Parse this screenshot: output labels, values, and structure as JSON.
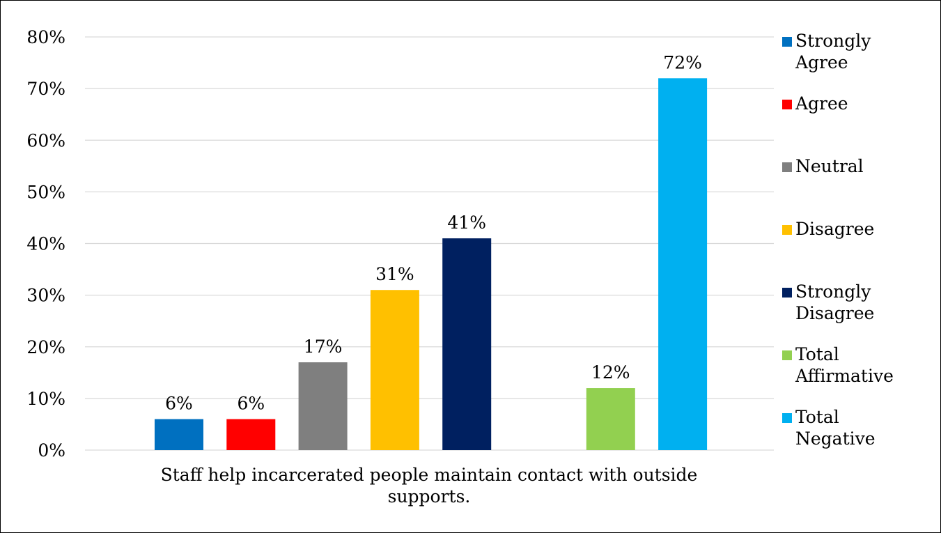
{
  "chart_data": {
    "type": "bar",
    "title": "",
    "xlabel": "",
    "ylabel": "",
    "categories": [
      "Staff help incarcerated people maintain contact with outside supports."
    ],
    "ylim": [
      0,
      80
    ],
    "y_ticks": [
      "0%",
      "10%",
      "20%",
      "30%",
      "40%",
      "50%",
      "60%",
      "70%",
      "80%"
    ],
    "grid": true,
    "legend_position": "right",
    "series": [
      {
        "name": "Strongly Agree",
        "values": [
          6
        ],
        "label": "6%",
        "color": "#0070c0"
      },
      {
        "name": "Agree",
        "values": [
          6
        ],
        "label": "6%",
        "color": "#ff0000"
      },
      {
        "name": "Neutral",
        "values": [
          17
        ],
        "label": "17%",
        "color": "#7f7f7f"
      },
      {
        "name": "Disagree",
        "values": [
          31
        ],
        "label": "31%",
        "color": "#ffc000"
      },
      {
        "name": "Strongly Disagree",
        "values": [
          41
        ],
        "label": "41%",
        "color": "#002060"
      },
      {
        "name": "Total Affirmative",
        "values": [
          12
        ],
        "label": "12%",
        "color": "#92d050"
      },
      {
        "name": "Total Negative",
        "values": [
          72
        ],
        "label": "72%",
        "color": "#00b0f0"
      }
    ]
  }
}
